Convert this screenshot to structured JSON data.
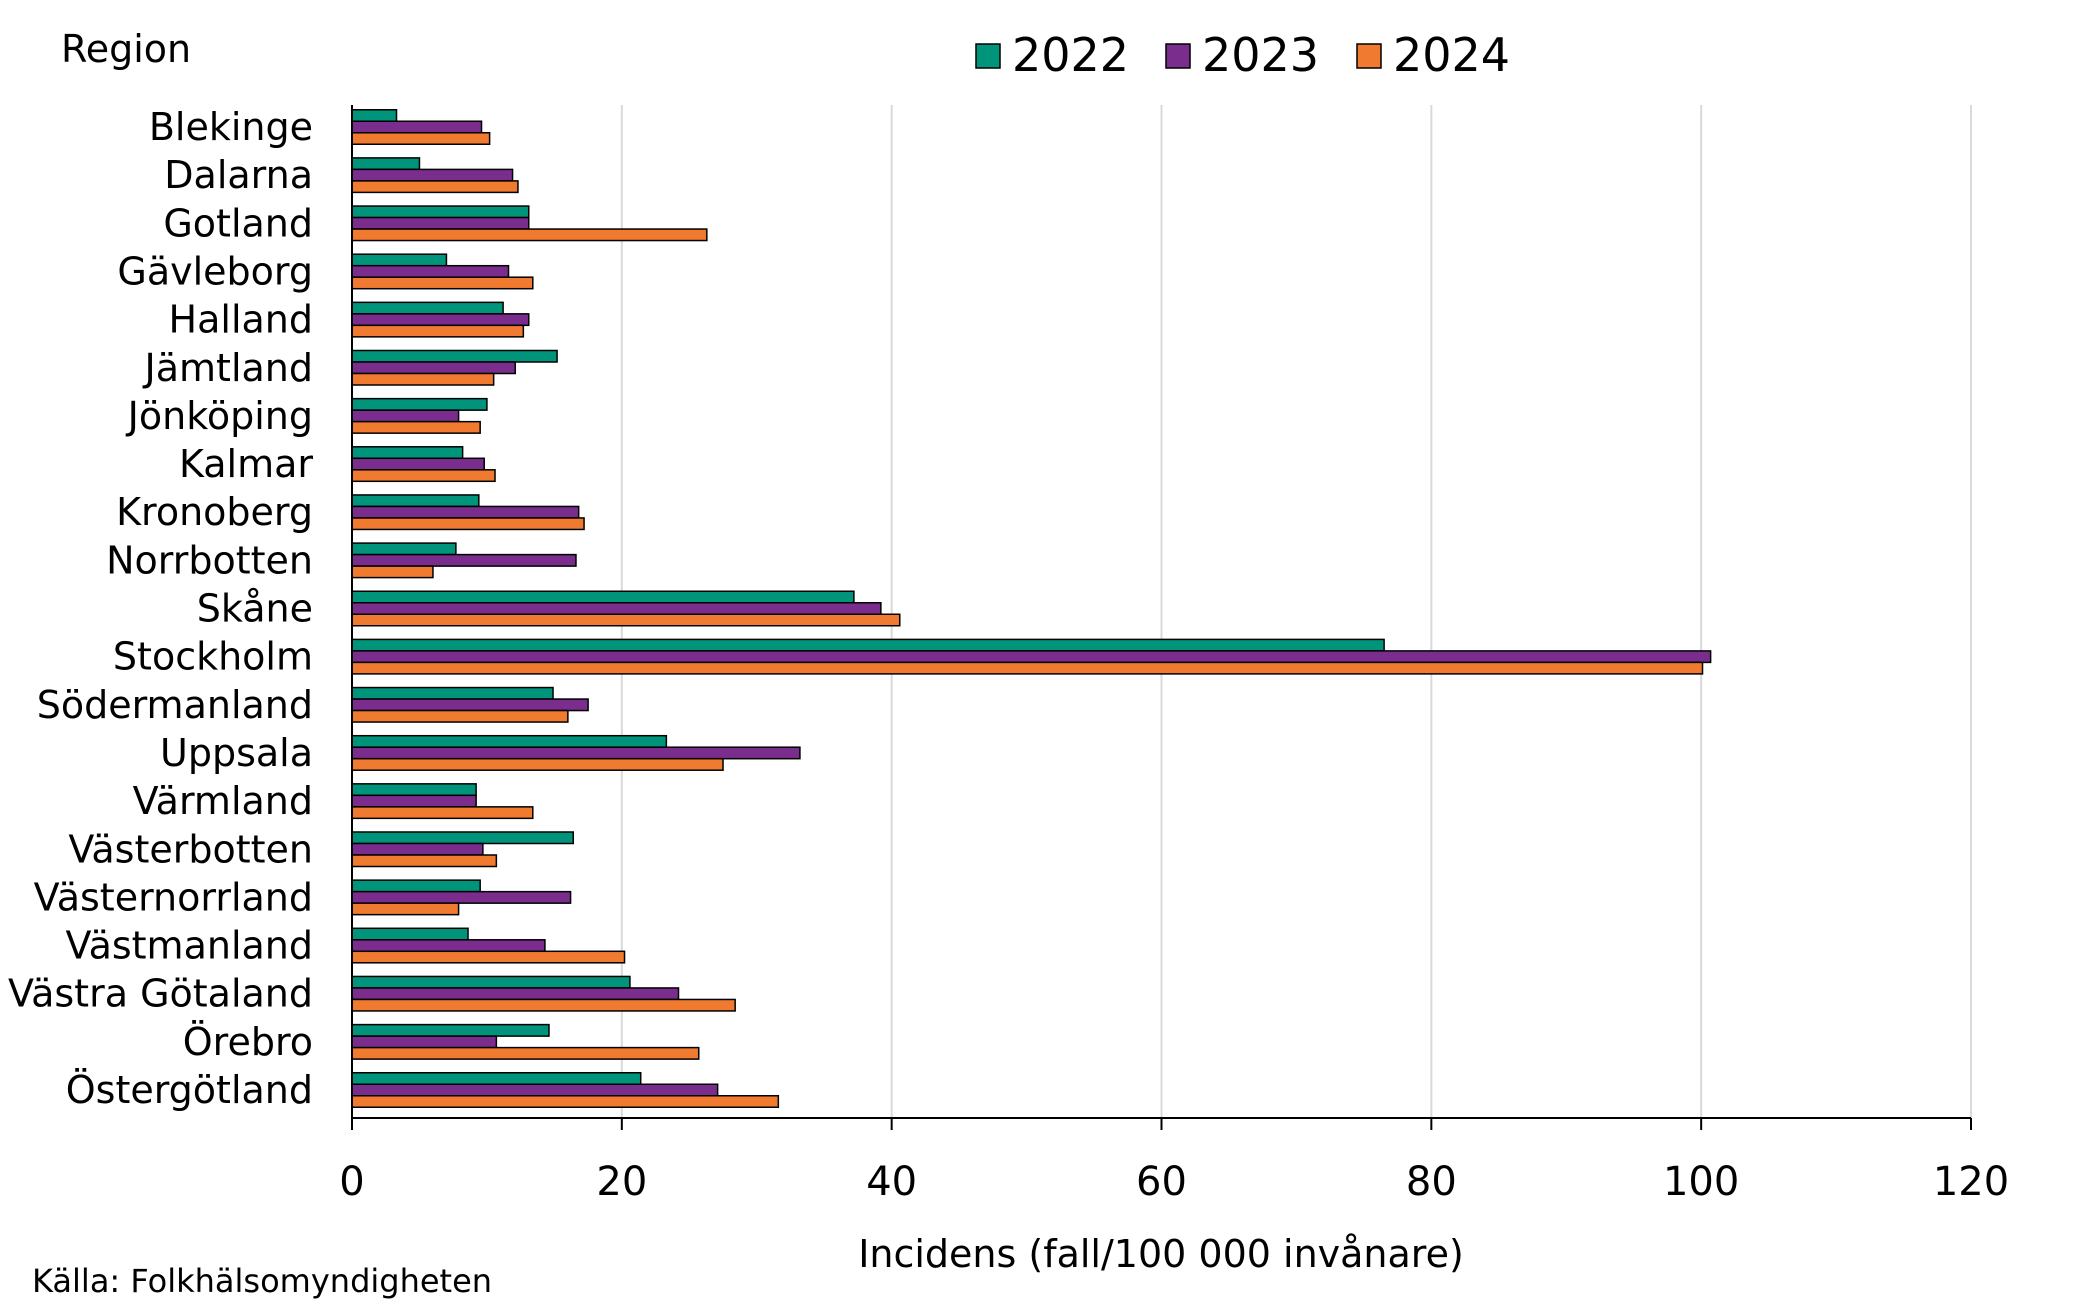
{
  "chart_data": {
    "type": "bar",
    "orientation": "horizontal",
    "title": "",
    "y_axis_title": "Region",
    "xlabel": "Incidens (fall/100 000 invånare)",
    "xlim": [
      0,
      120
    ],
    "xticks": [
      0,
      20,
      40,
      60,
      80,
      100,
      120
    ],
    "grid": "vertical",
    "legend_position": "top",
    "source": "Källa: Folkhälsomyndigheten",
    "categories": [
      "Blekinge",
      "Dalarna",
      "Gotland",
      "Gävleborg",
      "Halland",
      "Jämtland",
      "Jönköping",
      "Kalmar",
      "Kronoberg",
      "Norrbotten",
      "Skåne",
      "Stockholm",
      "Södermanland",
      "Uppsala",
      "Värmland",
      "Västerbotten",
      "Västernorrland",
      "Västmanland",
      "Västra Götaland",
      "Örebro",
      "Östergötland"
    ],
    "series": [
      {
        "name": "2022",
        "color": "#00957a",
        "values": [
          3.3,
          5.0,
          13.1,
          7.0,
          11.2,
          15.2,
          10.0,
          8.2,
          9.4,
          7.7,
          37.2,
          76.5,
          14.9,
          23.3,
          9.2,
          16.4,
          9.5,
          8.6,
          20.6,
          14.6,
          21.4
        ]
      },
      {
        "name": "2023",
        "color": "#7b2d8e",
        "values": [
          9.6,
          11.9,
          13.1,
          11.6,
          13.1,
          12.1,
          7.9,
          9.8,
          16.8,
          16.6,
          39.2,
          100.7,
          17.5,
          33.2,
          9.2,
          9.7,
          16.2,
          14.3,
          24.2,
          10.7,
          27.1
        ]
      },
      {
        "name": "2024",
        "color": "#f07a30",
        "values": [
          10.2,
          12.3,
          26.3,
          13.4,
          12.7,
          10.5,
          9.5,
          10.6,
          17.2,
          6.0,
          40.6,
          100.1,
          16.0,
          27.5,
          13.4,
          10.7,
          7.9,
          20.2,
          28.4,
          25.7,
          31.6
        ]
      }
    ]
  }
}
